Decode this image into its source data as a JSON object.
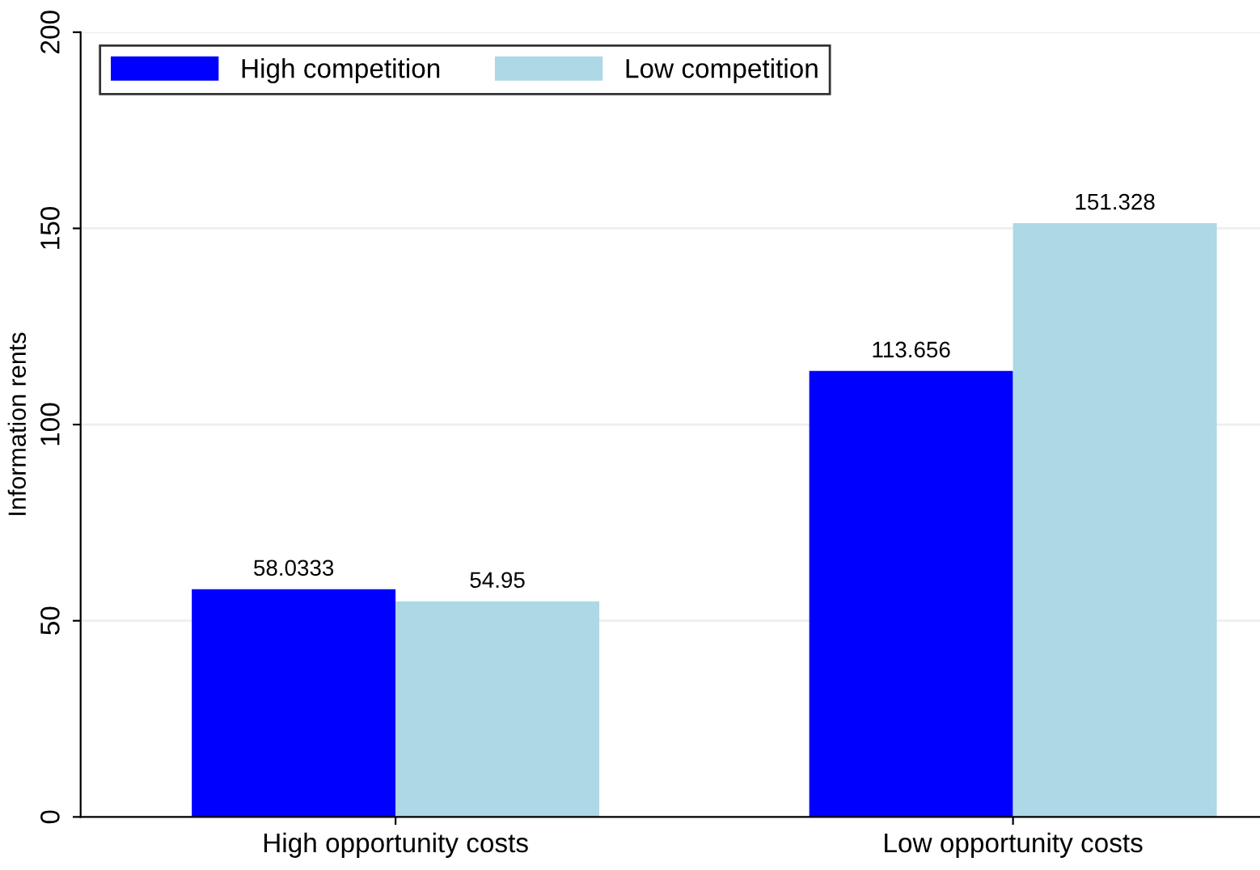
{
  "chart_data": {
    "type": "bar",
    "ylabel": "Information rents",
    "categories": [
      "High opportunity costs",
      "Low opportunity costs"
    ],
    "series": [
      {
        "name": "High competition",
        "color": "#0000ff",
        "values": [
          58.0333,
          113.656
        ]
      },
      {
        "name": "Low competition",
        "color": "#add8e6",
        "values": [
          54.95,
          151.328
        ]
      }
    ],
    "data_labels": true,
    "ylim": [
      0,
      200
    ],
    "yticks": [
      0,
      50,
      100,
      150,
      200
    ],
    "grid": "y",
    "legend": "top"
  }
}
